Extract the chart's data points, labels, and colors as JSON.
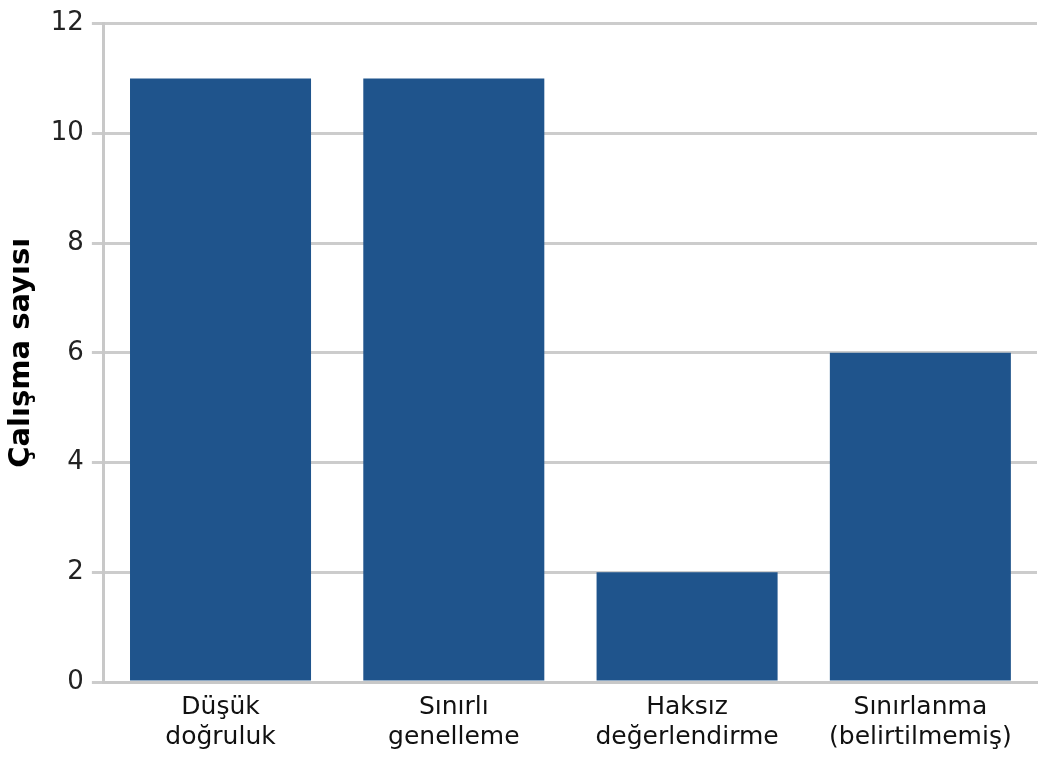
{
  "chart_data": {
    "type": "bar",
    "ylabel": "Çalışma sayısı",
    "categories": [
      "Düşük doğruluk",
      "Sınırlı genelleme",
      "Haksız değerlendirme",
      "Sınırlanma (belirtilmemiş)"
    ],
    "values": [
      11,
      11,
      2,
      6
    ],
    "color": "#1f548c",
    "ylim": [
      0,
      12
    ],
    "yticks": [
      0,
      2,
      4,
      6,
      8,
      10,
      12
    ],
    "grid": "y",
    "legend": false
  }
}
